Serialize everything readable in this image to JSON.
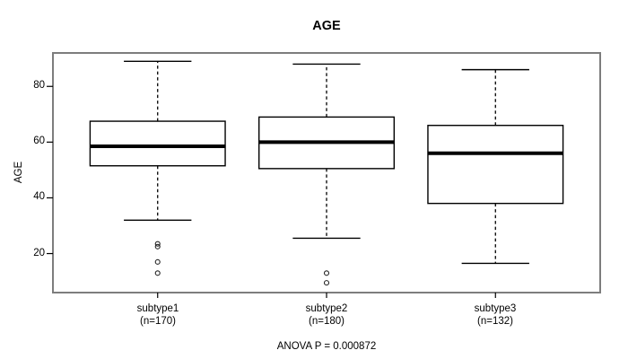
{
  "chart_data": {
    "type": "boxplot",
    "title": "AGE",
    "ylabel": "AGE",
    "annotation": "ANOVA P = 0.000872",
    "y_ticks": [
      20,
      40,
      60,
      80
    ],
    "ylim": [
      6,
      92
    ],
    "xlim": [
      0.38,
      3.62
    ],
    "box_width": 0.8,
    "cap_width_ratio": 0.5,
    "grid": false,
    "groups": [
      {
        "label": "subtype1",
        "n_label": "(n=170)",
        "position": 1,
        "whisker_low": 32,
        "q1": 51.5,
        "median": 58.5,
        "q3": 67.5,
        "whisker_high": 89,
        "outliers": [
          23.5,
          22.5,
          17,
          13
        ]
      },
      {
        "label": "subtype2",
        "n_label": "(n=180)",
        "position": 2,
        "whisker_low": 25.5,
        "q1": 50.5,
        "median": 60,
        "q3": 69,
        "whisker_high": 88,
        "outliers": [
          13,
          9.5
        ]
      },
      {
        "label": "subtype3",
        "n_label": "(n=132)",
        "position": 3,
        "whisker_low": 16.5,
        "q1": 38,
        "median": 56,
        "q3": 66,
        "whisker_high": 86,
        "outliers": []
      }
    ],
    "colors": {
      "frame": "#7d7d7d",
      "box_stroke": "#000000",
      "box_fill": "#ffffff",
      "median": "#000000",
      "whisker": "#000000",
      "outlier": "#222222",
      "tick": "#000000",
      "background": "#ffffff"
    }
  }
}
